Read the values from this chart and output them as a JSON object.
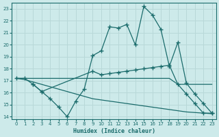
{
  "xlabel": "Humidex (Indice chaleur)",
  "ylabel": "",
  "background_color": "#cdeaea",
  "grid_color": "#b8d8d8",
  "line_color": "#1a6b6b",
  "xlim": [
    -0.5,
    23.5
  ],
  "ylim": [
    13.8,
    23.5
  ],
  "yticks": [
    14,
    15,
    16,
    17,
    18,
    19,
    20,
    21,
    22,
    23
  ],
  "xticks": [
    0,
    1,
    2,
    3,
    4,
    5,
    6,
    7,
    8,
    9,
    10,
    11,
    12,
    13,
    14,
    15,
    16,
    17,
    18,
    19,
    20,
    21,
    22,
    23
  ],
  "lines": [
    {
      "x": [
        0,
        1,
        2,
        3,
        4,
        5,
        6,
        7,
        8,
        9,
        10,
        11,
        12,
        13,
        14,
        15,
        16,
        17,
        18,
        19,
        20,
        21,
        22,
        23
      ],
      "y": [
        17.2,
        17.2,
        17.2,
        17.2,
        17.2,
        17.2,
        17.2,
        17.2,
        17.2,
        17.2,
        17.2,
        17.2,
        17.2,
        17.2,
        17.2,
        17.2,
        17.2,
        17.2,
        17.2,
        16.7,
        16.7,
        16.7,
        16.7,
        16.7
      ],
      "marker": false
    },
    {
      "x": [
        2,
        3,
        4,
        5,
        6,
        7,
        8,
        9,
        10,
        11,
        12,
        13,
        14,
        15,
        16,
        17,
        18,
        19,
        20,
        21,
        22,
        23
      ],
      "y": [
        16.7,
        16.1,
        15.5,
        14.8,
        14.0,
        15.3,
        16.3,
        19.1,
        19.5,
        21.5,
        21.4,
        21.7,
        20.0,
        23.2,
        22.5,
        21.3,
        18.2,
        20.2,
        16.8,
        15.9,
        15.1,
        14.3
      ],
      "marker": true
    },
    {
      "x": [
        0,
        1,
        2,
        3,
        9,
        10,
        11,
        12,
        13,
        14,
        15,
        16,
        17,
        18,
        19,
        20,
        21,
        22,
        23
      ],
      "y": [
        17.2,
        17.2,
        16.7,
        16.1,
        17.8,
        17.5,
        17.6,
        17.7,
        17.8,
        17.9,
        18.0,
        18.1,
        18.2,
        18.3,
        16.7,
        15.9,
        15.1,
        14.3,
        14.3
      ],
      "marker": true
    },
    {
      "x": [
        0,
        1,
        2,
        3,
        4,
        5,
        6,
        7,
        8,
        9,
        10,
        11,
        12,
        13,
        14,
        15,
        16,
        17,
        18,
        19,
        20,
        21,
        22,
        23
      ],
      "y": [
        17.2,
        17.1,
        16.9,
        16.7,
        16.5,
        16.3,
        16.1,
        15.9,
        15.7,
        15.5,
        15.4,
        15.3,
        15.2,
        15.1,
        15.0,
        14.9,
        14.8,
        14.7,
        14.6,
        14.5,
        14.4,
        14.35,
        14.3,
        14.25
      ],
      "marker": false
    }
  ]
}
